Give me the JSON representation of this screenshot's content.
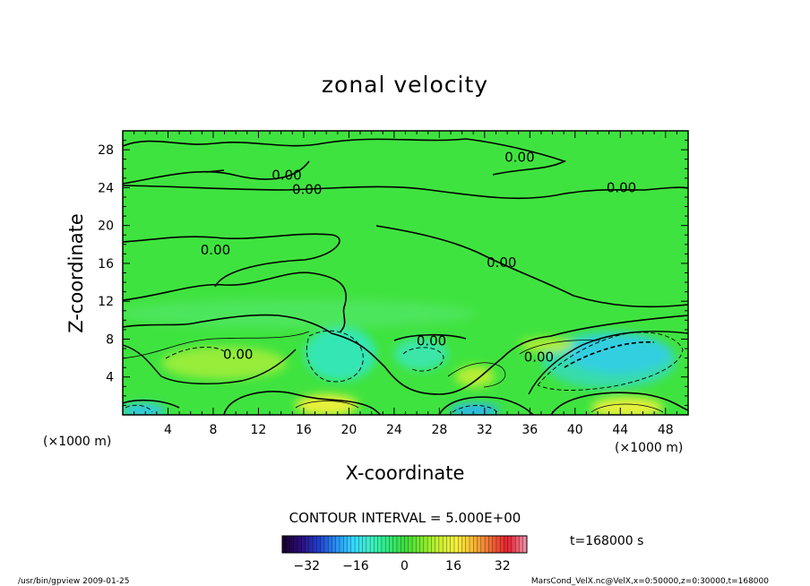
{
  "chart_data": {
    "type": "contour",
    "title": "zonal velocity",
    "xlabel": "X-coordinate",
    "ylabel": "Z-coordinate",
    "x_unit": "(×1000 m)",
    "y_unit": "(×1000 m)",
    "xlim": [
      0,
      50
    ],
    "ylim": [
      0,
      30
    ],
    "x_ticks": [
      "4",
      "8",
      "12",
      "16",
      "20",
      "24",
      "28",
      "32",
      "36",
      "40",
      "44",
      "48"
    ],
    "y_ticks": [
      "4",
      "8",
      "12",
      "16",
      "20",
      "24",
      "28"
    ],
    "contour_interval_text": "CONTOUR INTERVAL = 5.000E+00",
    "contour_labels": [
      {
        "text": "0.00",
        "x": 14.5,
        "y": 25.3
      },
      {
        "text": "0.00",
        "x": 16.3,
        "y": 23.8
      },
      {
        "text": "0.00",
        "x": 35.1,
        "y": 27.2
      },
      {
        "text": "0.00",
        "x": 44.1,
        "y": 24.0
      },
      {
        "text": "0.00",
        "x": 8.2,
        "y": 17.4
      },
      {
        "text": "0.00",
        "x": 33.5,
        "y": 16.1
      },
      {
        "text": "0.00",
        "x": 27.3,
        "y": 7.8
      },
      {
        "text": "0.00",
        "x": 10.2,
        "y": 6.4
      },
      {
        "text": "0.00",
        "x": 36.8,
        "y": 6.1
      }
    ],
    "colorbar": {
      "min": -40,
      "max": 40,
      "tick_labels": [
        "−32",
        "−16",
        "0",
        "16",
        "32"
      ],
      "tick_values": [
        -32,
        -16,
        0,
        16,
        32
      ],
      "colors": [
        "#1a0033",
        "#2b0f7a",
        "#1f3fd1",
        "#2a8cf0",
        "#33d8ff",
        "#3df0c8",
        "#33e880",
        "#3adf3a",
        "#7ce830",
        "#c8f032",
        "#f5f03c",
        "#f5b83a",
        "#f06a32",
        "#e02030",
        "#f08aa0"
      ]
    },
    "background_color": "#3fe33f"
  },
  "footer": {
    "time_label": "t=168000 s",
    "program": "/usr/bin/gpview   2009-01-25",
    "source": "MarsCond_VelX.nc@VelX,x=0:50000,z=0:30000,t=168000"
  }
}
